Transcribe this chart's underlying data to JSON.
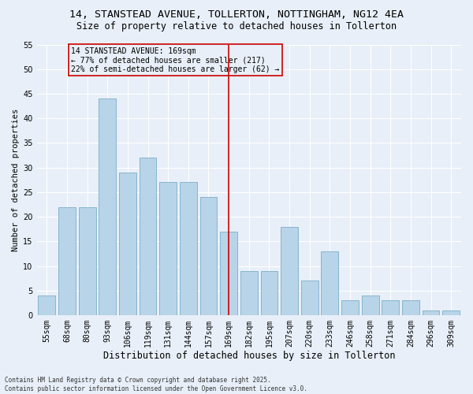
{
  "title": "14, STANSTEAD AVENUE, TOLLERTON, NOTTINGHAM, NG12 4EA",
  "subtitle": "Size of property relative to detached houses in Tollerton",
  "xlabel": "Distribution of detached houses by size in Tollerton",
  "ylabel": "Number of detached properties",
  "categories": [
    "55sqm",
    "68sqm",
    "80sqm",
    "93sqm",
    "106sqm",
    "119sqm",
    "131sqm",
    "144sqm",
    "157sqm",
    "169sqm",
    "182sqm",
    "195sqm",
    "207sqm",
    "220sqm",
    "233sqm",
    "246sqm",
    "258sqm",
    "271sqm",
    "284sqm",
    "296sqm",
    "309sqm"
  ],
  "values": [
    4,
    22,
    22,
    44,
    29,
    32,
    27,
    27,
    24,
    17,
    9,
    9,
    18,
    7,
    13,
    3,
    4,
    3,
    3,
    1,
    1
  ],
  "bar_color": "#b8d4e8",
  "bar_edge_color": "#7aaec8",
  "background_color": "#e8eff8",
  "grid_color": "#ffffff",
  "vline_x": 9,
  "vline_color": "#cc0000",
  "annotation_title": "14 STANSTEAD AVENUE: 169sqm",
  "annotation_line1": "← 77% of detached houses are smaller (217)",
  "annotation_line2": "22% of semi-detached houses are larger (62) →",
  "annotation_box_color": "#cc0000",
  "ylim": [
    0,
    55
  ],
  "yticks": [
    0,
    5,
    10,
    15,
    20,
    25,
    30,
    35,
    40,
    45,
    50,
    55
  ],
  "footnote": "Contains HM Land Registry data © Crown copyright and database right 2025.\nContains public sector information licensed under the Open Government Licence v3.0.",
  "title_fontsize": 9.5,
  "subtitle_fontsize": 8.5,
  "xlabel_fontsize": 8.5,
  "ylabel_fontsize": 7.5,
  "tick_fontsize": 7,
  "annot_fontsize": 7
}
